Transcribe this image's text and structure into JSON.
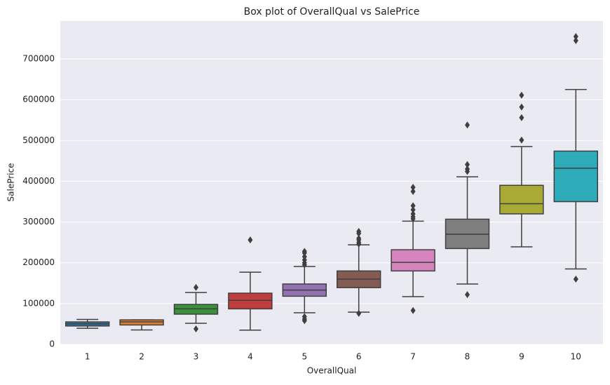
{
  "chart_data": {
    "type": "box",
    "title": "Box plot of OverallQual vs SalePrice",
    "x_label": "OverallQual",
    "y_label": "SalePrice",
    "categories": [
      "1",
      "2",
      "3",
      "4",
      "5",
      "6",
      "7",
      "8",
      "9",
      "10"
    ],
    "colors": [
      "#3274a1",
      "#e1812c",
      "#3a923a",
      "#c03d3e",
      "#9372b2",
      "#845b53",
      "#d684bd",
      "#7f7f7f",
      "#a9aa35",
      "#2eabb8"
    ],
    "boxes": [
      {
        "min": 39300,
        "q1": 45000,
        "median": 50150,
        "q3": 55000,
        "max": 61000,
        "outliers": []
      },
      {
        "min": 35300,
        "q1": 47500,
        "median": 55000,
        "q3": 60000,
        "max": 60000,
        "outliers": []
      },
      {
        "min": 51600,
        "q1": 74000,
        "median": 87000,
        "q3": 98000,
        "max": 127000,
        "outliers": [
          139600,
          37900
        ]
      },
      {
        "min": 34900,
        "q1": 87000,
        "median": 108000,
        "q3": 125500,
        "max": 177000,
        "outliers": [
          256000
        ]
      },
      {
        "min": 77500,
        "q1": 118000,
        "median": 133000,
        "q3": 148000,
        "max": 191000,
        "outliers": [
          228000,
          224000,
          215000,
          207000,
          200000,
          195000,
          68000,
          62000,
          58000
        ]
      },
      {
        "min": 79000,
        "q1": 139000,
        "median": 160000,
        "q3": 180000,
        "max": 244000,
        "outliers": [
          277000,
          272000,
          260000,
          256000,
          250000,
          246000,
          76000
        ]
      },
      {
        "min": 117000,
        "q1": 180000,
        "median": 201000,
        "q3": 232000,
        "max": 302000,
        "outliers": [
          385000,
          375000,
          340000,
          330000,
          320000,
          313000,
          308000,
          83000
        ]
      },
      {
        "min": 148000,
        "q1": 235000,
        "median": 270000,
        "q3": 307000,
        "max": 411000,
        "outliers": [
          538000,
          441000,
          430000,
          424000,
          122000
        ]
      },
      {
        "min": 239000,
        "q1": 320000,
        "median": 345000,
        "q3": 390000,
        "max": 485000,
        "outliers": [
          611000,
          582000,
          556000,
          501000
        ]
      },
      {
        "min": 185000,
        "q1": 350000,
        "median": 432000,
        "q3": 474000,
        "max": 625000,
        "outliers": [
          755000,
          745000,
          160000
        ]
      }
    ],
    "ylim": [
      0,
      793000
    ],
    "yticks": [
      0,
      100000,
      200000,
      300000,
      400000,
      500000,
      600000,
      700000
    ],
    "grid": true
  }
}
